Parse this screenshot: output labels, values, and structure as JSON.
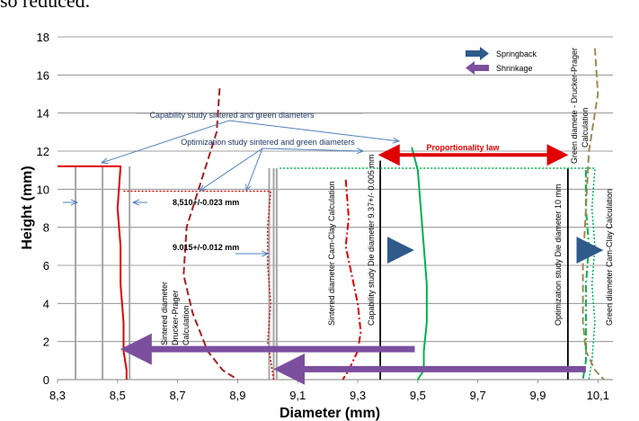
{
  "page": {
    "top_text": "so reduced."
  },
  "chart_data": {
    "type": "line",
    "title": "",
    "xlabel": "Diameter  (mm)",
    "ylabel": "Height  (mm)",
    "xlim": [
      8.3,
      10.15
    ],
    "ylim": [
      0,
      18
    ],
    "x_ticks": [
      8.3,
      8.5,
      8.7,
      8.9,
      9.1,
      9.3,
      9.5,
      9.7,
      9.9,
      10.1
    ],
    "x_tick_labels": [
      "8,3",
      "8,5",
      "8,7",
      "8,9",
      "9,1",
      "9,3",
      "9,5",
      "9,7",
      "9,9",
      "10,1"
    ],
    "y_ticks": [
      0,
      2,
      4,
      6,
      8,
      10,
      12,
      14,
      16,
      18
    ],
    "y_tick_labels": [
      "0",
      "2",
      "4",
      "6",
      "8",
      "10",
      "12",
      "14",
      "16",
      "18"
    ],
    "grid": "horizontal",
    "legend": {
      "position": "top-right",
      "items": [
        {
          "label": "Springback",
          "color": "#2F5A8A",
          "icon": "arrow-right-icon"
        },
        {
          "label": "Shrinkage",
          "color": "#7B4F9E",
          "icon": "arrow-left-icon"
        }
      ]
    },
    "series": [
      {
        "color": "#E00000",
        "style": "solid",
        "x": [
          8.3,
          8.51,
          8.5,
          8.51,
          8.51,
          8.52,
          8.52,
          8.53,
          8.53
        ],
        "y": [
          11.2,
          11.2,
          9,
          7,
          5,
          3,
          1.5,
          0.5,
          0
        ]
      },
      {
        "color": "#E00000",
        "style": "dotted",
        "x": [
          8.52,
          9.01,
          9.0,
          9.0,
          9.01,
          9.0,
          9.01,
          9.02
        ],
        "y": [
          9.9,
          9.9,
          8,
          6,
          4,
          2,
          1,
          0
        ]
      },
      {
        "color": "#A02020",
        "style": "dash",
        "x": [
          8.84,
          8.83,
          8.78,
          8.73,
          8.72,
          8.75,
          8.8,
          8.85,
          8.9
        ],
        "y": [
          15.3,
          13,
          10.5,
          8,
          5.5,
          3.5,
          1.5,
          0.5,
          0
        ]
      },
      {
        "color": "#E00000",
        "style": "dashdot",
        "x": [
          9.26,
          9.27,
          9.26,
          9.28,
          9.3,
          9.31,
          9.3,
          9.27,
          9.25
        ],
        "y": [
          10.5,
          8.5,
          7,
          5.5,
          4,
          2.5,
          1.5,
          0.5,
          0
        ]
      },
      {
        "color": "#00B050",
        "style": "solid",
        "x": [
          9.48,
          9.5,
          9.51,
          9.52,
          9.53,
          9.53,
          9.52,
          9.52,
          9.5
        ],
        "y": [
          12.2,
          11,
          9,
          7,
          5,
          3,
          1.5,
          0.5,
          0
        ]
      },
      {
        "color": "#00B050",
        "style": "dotted",
        "x": [
          9.04,
          10.09,
          10.08,
          10.09,
          10.08,
          10.09,
          10.08,
          10.07
        ],
        "y": [
          11.1,
          11.1,
          9,
          7,
          5,
          3,
          1,
          0
        ]
      },
      {
        "color": "#00B050",
        "style": "dashdot",
        "x": [
          10.06,
          10.06,
          10.07,
          10.06,
          10.06,
          10.06,
          10.05
        ],
        "y": [
          11.0,
          9,
          7,
          5,
          3,
          1,
          0
        ]
      },
      {
        "color": "#A08850",
        "style": "dash",
        "x": [
          10.09,
          10.1,
          10.07,
          10.06,
          10.05,
          10.05,
          10.06,
          10.09,
          10.12
        ],
        "y": [
          17.4,
          15,
          12,
          9,
          6,
          3,
          1.5,
          0.5,
          0
        ]
      }
    ],
    "vertical_lines": [
      {
        "x": 8.36,
        "y_top": 11.2,
        "color": "#A6A6A6"
      },
      {
        "x": 8.45,
        "y_top": 11.2,
        "color": "#A6A6A6"
      },
      {
        "x": 8.54,
        "y_top": 11.2,
        "color": "#A6A6A6"
      },
      {
        "x": 9.005,
        "y_top": 11.1,
        "color": "#A6A6A6"
      },
      {
        "x": 9.02,
        "y_top": 11.1,
        "color": "#A6A6A6"
      },
      {
        "x": 9.03,
        "y_top": 11.1,
        "color": "#A6A6A6"
      },
      {
        "x": 9.375,
        "y_top": 11.5,
        "color": "#000000"
      },
      {
        "x": 10.0,
        "y_top": 11.1,
        "color": "#000000"
      }
    ],
    "arrows": [
      {
        "label": "Proportionality law",
        "color": "#E00000",
        "x_from": 9.38,
        "x_to": 9.99,
        "y": 11.8,
        "double": true
      },
      {
        "label": "",
        "color": "#7B4F9E",
        "x_from": 9.49,
        "x_to": 8.53,
        "y": 1.6,
        "double": false
      },
      {
        "label": "",
        "color": "#7B4F9E",
        "x_from": 10.06,
        "x_to": 9.04,
        "y": 0.55,
        "double": false
      },
      {
        "label": "",
        "color": "#2F5A8A",
        "x_from": 9.41,
        "x_to": 9.47,
        "y": 6.8,
        "double": false
      },
      {
        "label": "",
        "color": "#2F5A8A",
        "x_from": 10.04,
        "x_to": 10.1,
        "y": 6.8,
        "double": false
      }
    ],
    "annotations": {
      "capability": "Capability study sintered and green diameters",
      "optimization": "Optimization study sintered and green diameters",
      "tol_1": "8,510+/-0.023 mm",
      "tol_2": "9.015+/-0.012 mm",
      "proportionality": "Proportionality law",
      "v_sintered_dp": [
        "Sintered diameter",
        "Drucker-Prager",
        "Calculation"
      ],
      "v_sintered_cc": "Sintered diameter Cam-Clay Calculation",
      "v_capability_die": "Capability study Die diameter 9.37+/- 0.005 mm",
      "v_optimization_die": "Optimization study Die diameter 10 mm",
      "v_green_dp": [
        "Green diamete - Drucker-Prager",
        "Calculation"
      ],
      "v_green_cc": "Green diameter Cam-Clay Calculation"
    }
  }
}
